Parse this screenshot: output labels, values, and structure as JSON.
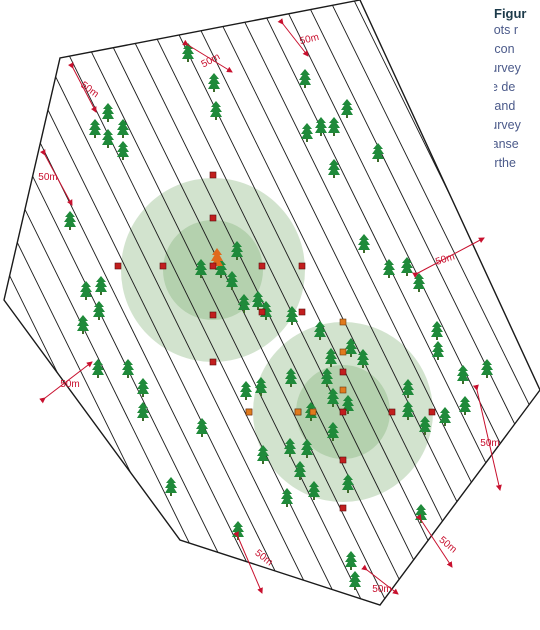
{
  "caption": {
    "title": "Figur",
    "lines": [
      "plots r",
      "a con",
      "survey",
      "be de",
      "Mand",
      "survey",
      "transe",
      "furthe"
    ]
  },
  "distance_label": "50m",
  "colors": {
    "hexagon_stroke": "#1a1a1a",
    "transect_stroke": "#1a1a1a",
    "tree": "#1f8a3a",
    "tree_trunk": "#3d6b2a",
    "circle_fill": "#7fae74",
    "plot_red": "#c21e1e",
    "plot_orange": "#e07a1e",
    "arrow": "#c8102e",
    "center_tree": "#e06a1e"
  },
  "icons": {
    "tree": "tree-icon",
    "sample_plot": "sample-plot-marker",
    "survey_centre": "centre-tree-icon"
  }
}
